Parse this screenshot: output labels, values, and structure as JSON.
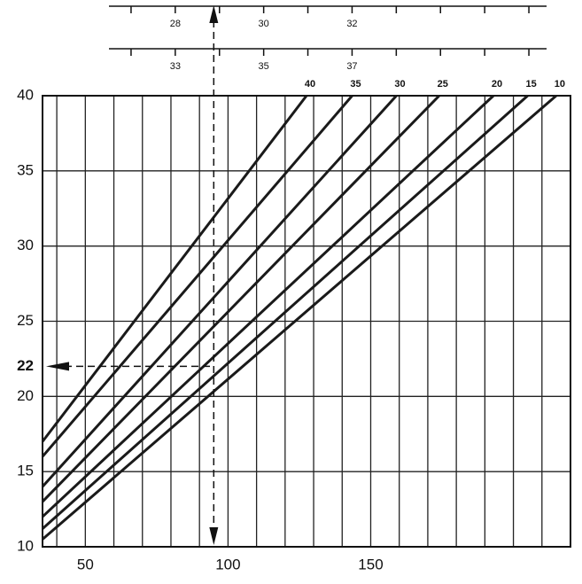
{
  "chart_data": {
    "type": "line",
    "xlim": [
      35,
      220
    ],
    "ylim": [
      10,
      40
    ],
    "xticks": [
      50,
      100,
      150
    ],
    "yticks": [
      10,
      15,
      20,
      25,
      30,
      35,
      40
    ],
    "xgrid": [
      40,
      50,
      60,
      70,
      80,
      90,
      100,
      110,
      120,
      130,
      140,
      150,
      160,
      170,
      180,
      190,
      200,
      210
    ],
    "grid": true,
    "series": [
      {
        "name": "40",
        "color": "#1a1a1a",
        "x": [
          35,
          127.5
        ],
        "values": [
          17,
          40
        ]
      },
      {
        "name": "35",
        "color": "#1a1a1a",
        "x": [
          35,
          143.5
        ],
        "values": [
          16,
          40
        ]
      },
      {
        "name": "30",
        "color": "#1a1a1a",
        "x": [
          35,
          159
        ],
        "values": [
          14,
          40
        ]
      },
      {
        "name": "25",
        "color": "#1a1a1a",
        "x": [
          35,
          174
        ],
        "values": [
          13,
          40
        ]
      },
      {
        "name": "20",
        "color": "#1a1a1a",
        "x": [
          35,
          193
        ],
        "values": [
          12,
          40
        ]
      },
      {
        "name": "15",
        "color": "#1a1a1a",
        "x": [
          35,
          205
        ],
        "values": [
          11.2,
          40
        ]
      },
      {
        "name": "10",
        "color": "#1a1a1a",
        "x": [
          35,
          215
        ],
        "values": [
          10.5,
          40
        ]
      }
    ],
    "marker_x": 95,
    "marker_y": 22,
    "top_scales": [
      {
        "lim": [
          26.5,
          36.4
        ],
        "ticks": [
          27,
          28,
          29,
          30,
          31,
          32,
          33,
          34,
          35,
          36
        ],
        "tick_labels": [
          28,
          30,
          32
        ]
      },
      {
        "lim": [
          31.5,
          41.4
        ],
        "ticks": [
          32,
          33,
          34,
          35,
          36,
          37,
          38,
          39,
          40,
          41
        ],
        "tick_labels": [
          33,
          35,
          37
        ]
      }
    ]
  }
}
